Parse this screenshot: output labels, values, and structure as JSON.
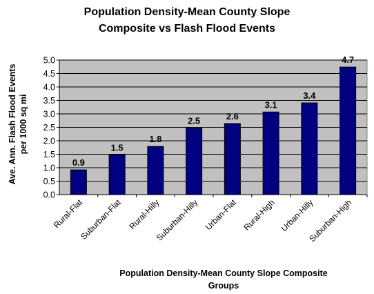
{
  "chart_data": {
    "type": "bar",
    "title_lines": [
      "Population Density-Mean County Slope",
      "Composite vs Flash Flood Events"
    ],
    "ylabel_lines": [
      "Ave. Ann. Flash Flood Events",
      "per 1000 sq mi"
    ],
    "xlabel_lines": [
      "Population Density-Mean County Slope Composite",
      "Groups"
    ],
    "categories": [
      "Rural-Flat",
      "Suburban-Flat",
      "Rural-Hilly",
      "Suburban-Hilly",
      "Urban-Flat",
      "Rural-High",
      "Urban-Hilly",
      "Suburban-High"
    ],
    "values": [
      0.9,
      1.5,
      1.8,
      2.5,
      2.6,
      3.1,
      3.4,
      4.7
    ],
    "value_labels": [
      "0.9",
      "1.5",
      "1.8",
      "2.5",
      "2.6",
      "3.1",
      "3.4",
      "4.7"
    ],
    "bar_heights": [
      0.92,
      1.48,
      1.79,
      2.47,
      2.64,
      3.07,
      3.41,
      4.74
    ],
    "yticks": [
      "0.0",
      "0.5",
      "1.0",
      "1.5",
      "2.0",
      "2.5",
      "3.0",
      "3.5",
      "4.0",
      "4.5",
      "5.0"
    ],
    "ylim": [
      0,
      5
    ],
    "grid": true,
    "legend": "none",
    "colors": {
      "bar": "#000080",
      "plot_bg": "#c0c0c0",
      "grid": "#000000"
    }
  }
}
